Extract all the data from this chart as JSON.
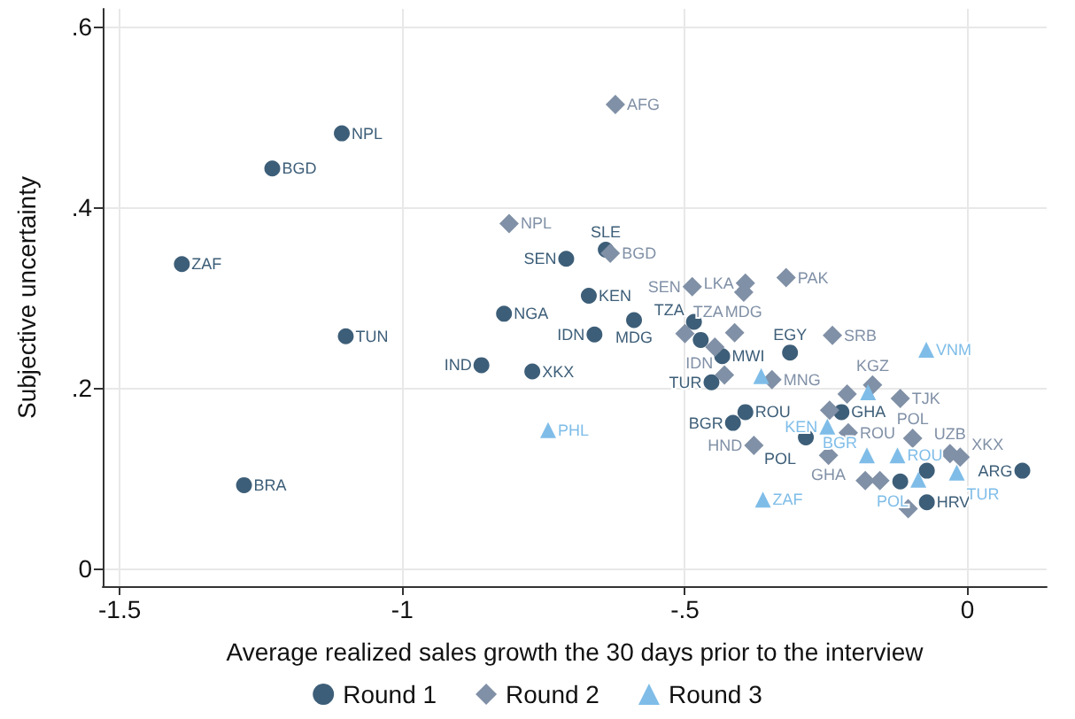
{
  "chart_data": {
    "type": "scatter",
    "xlabel": "Average realized sales growth the 30 days prior to the interview",
    "ylabel": "Subjective uncertainty",
    "xlim": [
      -1.53,
      0.14
    ],
    "ylim": [
      -0.02,
      0.62
    ],
    "xticks": [
      {
        "value": -1.5,
        "label": "-1.5"
      },
      {
        "value": -1,
        "label": "-1"
      },
      {
        "value": -0.5,
        "label": "-.5"
      },
      {
        "value": 0,
        "label": "0"
      }
    ],
    "yticks": [
      {
        "value": 0,
        "label": "0"
      },
      {
        "value": 0.2,
        "label": ".2"
      },
      {
        "value": 0.4,
        "label": ".4"
      },
      {
        "value": 0.6,
        "label": ".6"
      }
    ],
    "grid": true,
    "legend": "bottom",
    "series": [
      {
        "name": "Round 1",
        "color": "#3d5e78",
        "marker": "circle",
        "x": [
          -1.107,
          -1.23,
          -1.39,
          -1.1,
          -1.28,
          -0.82,
          -0.86,
          -0.77,
          -0.71,
          -0.64,
          -0.67,
          -0.59,
          -0.66,
          -0.484,
          -0.472,
          -0.434,
          -0.453,
          -0.314,
          -0.393,
          -0.415,
          -0.286,
          -0.223,
          -0.072,
          -0.119,
          -0.072,
          0.097
        ],
        "values": [
          0.482,
          0.443,
          0.337,
          0.257,
          0.092,
          0.282,
          0.225,
          0.218,
          0.343,
          0.353,
          0.302,
          0.275,
          0.259,
          0.273,
          0.253,
          0.235,
          0.206,
          0.239,
          0.173,
          0.161,
          0.145,
          0.173,
          0.108,
          0.096,
          0.073,
          0.108
        ],
        "value_labels": [
          "NPL",
          "BGD",
          "ZAF",
          "TUN",
          "BRA",
          "NGA",
          "IND",
          "XKX",
          "SEN",
          "SLE",
          "KEN",
          "MDG",
          "IDN",
          "TZA",
          null,
          "MWI",
          "TUR",
          "EGY",
          "ROU",
          "BGR",
          "POL",
          "GHA",
          null,
          null,
          "HRV",
          "ARG"
        ]
      },
      {
        "name": "Round 2",
        "color": "#8090a6",
        "marker": "diamond",
        "x": [
          -0.623,
          -0.811,
          -0.632,
          -0.487,
          -0.393,
          -0.396,
          -0.321,
          -0.5,
          -0.412,
          -0.447,
          -0.43,
          -0.346,
          -0.239,
          -0.168,
          -0.213,
          -0.119,
          -0.244,
          -0.211,
          -0.097,
          -0.378,
          -0.246,
          -0.031,
          -0.013,
          -0.181,
          -0.155,
          -0.105
        ],
        "values": [
          0.514,
          0.382,
          0.349,
          0.312,
          0.316,
          0.306,
          0.322,
          0.26,
          0.261,
          0.245,
          0.214,
          0.209,
          0.258,
          0.203,
          0.193,
          0.188,
          0.175,
          0.15,
          0.144,
          0.136,
          0.125,
          0.127,
          0.123,
          0.097,
          0.097,
          0.066
        ],
        "value_labels": [
          "AFG",
          "NPL",
          "BGD",
          "SEN",
          "LKA",
          "MDG",
          "PAK",
          null,
          "TZA",
          null,
          "IDN",
          "MNG",
          "SRB",
          "KGZ",
          null,
          "TJK",
          null,
          "ROU",
          "POL",
          "HND",
          "GHA",
          "UZB",
          "XKX",
          null,
          null,
          null
        ]
      },
      {
        "name": "Round 3",
        "color": "#7fbde8",
        "marker": "triangle",
        "x": [
          -0.073,
          -0.742,
          -0.362,
          -0.365,
          -0.248,
          -0.178,
          -0.124,
          -0.087,
          -0.019,
          -0.176
        ],
        "values": [
          0.242,
          0.153,
          0.076,
          0.213,
          0.157,
          0.125,
          0.125,
          0.098,
          0.106,
          0.195
        ],
        "value_labels": [
          "VNM",
          "PHL",
          "ZAF",
          null,
          "KEN",
          "BGR",
          "ROU",
          "POL",
          "TUR",
          null
        ]
      }
    ]
  }
}
